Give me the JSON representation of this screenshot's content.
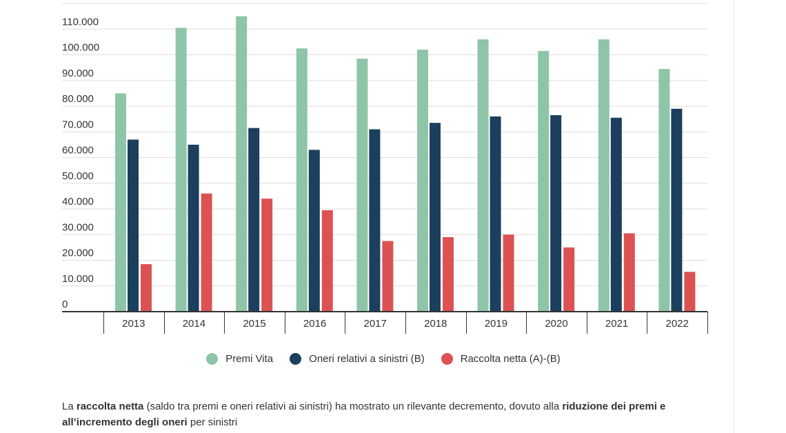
{
  "chart_data": {
    "type": "bar",
    "categories": [
      "2013",
      "2014",
      "2015",
      "2016",
      "2017",
      "2018",
      "2019",
      "2020",
      "2021",
      "2022"
    ],
    "series": [
      {
        "name": "Premi Vita",
        "color": "#8ec5a8",
        "values": [
          85000,
          110500,
          115000,
          102500,
          98500,
          102000,
          106000,
          101500,
          106000,
          94500
        ]
      },
      {
        "name": "Oneri relativi a sinistri (B)",
        "color": "#1b3f5c",
        "values": [
          67000,
          65000,
          71500,
          63000,
          71000,
          73500,
          76000,
          76500,
          75500,
          79000
        ]
      },
      {
        "name": "Raccolta netta (A)-(B)",
        "color": "#dc5253",
        "values": [
          18500,
          46000,
          44000,
          39500,
          27500,
          29000,
          30000,
          25000,
          30500,
          15500
        ]
      }
    ],
    "ylim": [
      0,
      120000
    ],
    "yticks": [
      {
        "value": 0,
        "label": "0"
      },
      {
        "value": 10000,
        "label": "10.000"
      },
      {
        "value": 20000,
        "label": "20.000"
      },
      {
        "value": 30000,
        "label": "30.000"
      },
      {
        "value": 40000,
        "label": "40.000"
      },
      {
        "value": 50000,
        "label": "50.000"
      },
      {
        "value": 60000,
        "label": "60.000"
      },
      {
        "value": 70000,
        "label": "70.000"
      },
      {
        "value": 80000,
        "label": "80.000"
      },
      {
        "value": 90000,
        "label": "90.000"
      },
      {
        "value": 100000,
        "label": "100.000"
      },
      {
        "value": 110000,
        "label": "110.000"
      }
    ],
    "grid": true,
    "legend_position": "bottom-center",
    "title": "",
    "xlabel": "",
    "ylabel": ""
  },
  "caption": {
    "segments": [
      {
        "text": "La ",
        "bold": false
      },
      {
        "text": "raccolta netta",
        "bold": true
      },
      {
        "text": " (saldo tra premi e oneri relativi ai sinistri) ha mostrato un rilevante decremento, dovuto alla ",
        "bold": false
      },
      {
        "text": "riduzione dei premi e all’incremento degli oneri",
        "bold": true
      },
      {
        "text": " per sinistri",
        "bold": false
      }
    ]
  }
}
